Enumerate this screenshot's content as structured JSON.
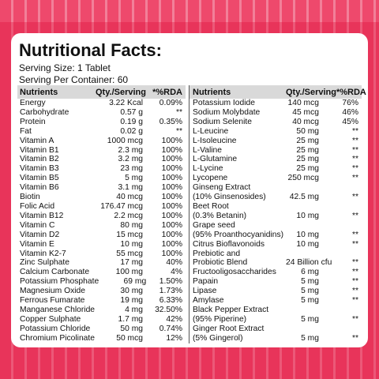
{
  "title": "Nutritional Facts:",
  "serving_size": "Serving Size: 1 Tablet",
  "servings_per_container": "Serving Per Container: 60",
  "headers": {
    "nutrients": "Nutrients",
    "qty": "Qty./Serving",
    "rda": "*%RDA"
  },
  "left_rows": [
    [
      "Energy",
      "3.22 Kcal",
      "0.09%"
    ],
    [
      "Carbohydrate",
      "0.57 g",
      "**"
    ],
    [
      "Protein",
      "0.19 g",
      "0.35%"
    ],
    [
      "Fat",
      "0.02 g",
      "**"
    ],
    [
      "Vitamin A",
      "1000 mcg",
      "100%"
    ],
    [
      "Vitamin B1",
      "2.3 mg",
      "100%"
    ],
    [
      "Vitamin B2",
      "3.2 mg",
      "100%"
    ],
    [
      "Vitamin B3",
      "23 mg",
      "100%"
    ],
    [
      "Vitamin B5",
      "5 mg",
      "100%"
    ],
    [
      "Vitamin B6",
      "3.1 mg",
      "100%"
    ],
    [
      "Biotin",
      "40 mcg",
      "100%"
    ],
    [
      "Folic Acid",
      "176.47 mcg",
      "100%"
    ],
    [
      "Vitamin B12",
      "2.2 mcg",
      "100%"
    ],
    [
      "Vitamin C",
      "80 mg",
      "100%"
    ],
    [
      "Vitamin D2",
      "15 mcg",
      "100%"
    ],
    [
      "Vitamin E",
      "10 mg",
      "100%"
    ],
    [
      "Vitamin K2-7",
      "55 mcg",
      "100%"
    ],
    [
      "Zinc Sulphate",
      "17 mg",
      "40%"
    ],
    [
      "Calcium Carbonate",
      "100 mg",
      "4%"
    ],
    [
      "Potassium Phosphate",
      "69 mg",
      "1.50%"
    ],
    [
      "Magnesium Oxide",
      "30 mg",
      "1.73%"
    ],
    [
      "Ferrous Fumarate",
      "19 mg",
      "6.33%"
    ],
    [
      "Manganese Chloride",
      "4 mg",
      "32.50%"
    ],
    [
      "Copper Sulphate",
      "1.7 mg",
      "42%"
    ],
    [
      "Potassium Chloride",
      "50 mg",
      "0.74%"
    ],
    [
      "Chromium Picolinate",
      "50 mcg",
      "12%"
    ]
  ],
  "right_rows": [
    [
      "Potassium Iodide",
      "140 mcg",
      "76%"
    ],
    [
      "Sodium Molybdate",
      "45 mcg",
      "46%"
    ],
    [
      "Sodium Selenite",
      "40 mcg",
      "45%"
    ],
    [
      "L-Leucine",
      "50 mg",
      "**"
    ],
    [
      "L-Isoleucine",
      "25 mg",
      "**"
    ],
    [
      "L-Valine",
      "25 mg",
      "**"
    ],
    [
      "L-Glutamine",
      "25 mg",
      "**"
    ],
    [
      "L-Lycine",
      "25 mg",
      "**"
    ],
    [
      "Lycopene",
      "250 mcg",
      "**"
    ],
    [
      "Ginseng Extract\n(10% Ginsenosides)",
      "42.5 mg",
      "**"
    ],
    [
      "Beet Root\n(0.3% Betanin)",
      "10 mg",
      "**"
    ],
    [
      "Grape seed\n(95% Proanthocyanidins)",
      "10 mg",
      "**"
    ],
    [
      "Citrus Bioflavonoids",
      "10 mg",
      "**"
    ],
    [
      "Prebiotic and\nProbiotic Blend",
      "24 Billion cfu",
      "**"
    ],
    [
      "Fructooligosaccharides",
      "6 mg",
      "**"
    ],
    [
      "Papain",
      "5 mg",
      "**"
    ],
    [
      "Lipase",
      "5 mg",
      "**"
    ],
    [
      "Amylase",
      "5 mg",
      "**"
    ],
    [
      "Black Pepper Extract\n(95% Piperine)",
      "5 mg",
      "**"
    ],
    [
      "Ginger Root Extract\n(5% Gingerol)",
      "5 mg",
      "**"
    ]
  ],
  "colors": {
    "background": "#e8345a",
    "card": "#ffffff",
    "header_row": "#d9d9d9"
  }
}
